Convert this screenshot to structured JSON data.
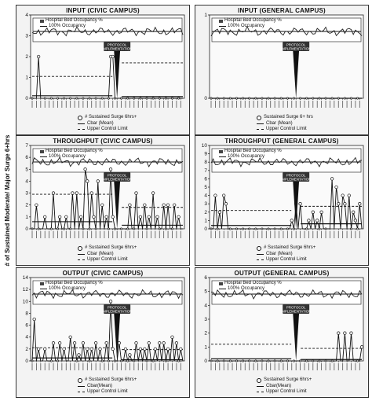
{
  "figure": {
    "y_axis_label": "# of Sustained Moderate/ Major Surge 6+hrs",
    "protocol_label_1": "PROTOCOL",
    "protocol_label_2": "IMPLEMENTATION"
  },
  "chart_data": [
    {
      "type": "line",
      "title": "INPUT (CIVIC CAMPUS)",
      "ylim": [
        0,
        4
      ],
      "yticks": [
        0,
        1,
        2,
        3,
        4
      ],
      "legend_occ": [
        "Hospital Bed Occupancy %",
        "100% Occupancy"
      ],
      "legend_series": [
        "# Sustained Surge 6hrs+",
        "Cbar (Mean)",
        "Upper Control Limit"
      ],
      "cbar_pre": 0.12,
      "ucl_pre": 1.05,
      "cbar_post": 0.08,
      "ucl_post": 1.7,
      "spikes": [
        [
          3,
          2
        ],
        [
          37,
          2
        ],
        [
          38,
          2
        ]
      ],
      "occ_ucl": 3.2,
      "occ_mean": 3.5
    },
    {
      "type": "line",
      "title": "INPUT (GENERAL CAMPUS)",
      "ylim": [
        0,
        1
      ],
      "yticks": [
        0,
        1
      ],
      "legend_occ": [
        "Hospital Bed Occupancy %",
        "100% Occupancy"
      ],
      "legend_series": [
        "Sustained Surge 6+ hrs",
        "Cbar (Mean)",
        "Upper Control Limit"
      ],
      "cbar_pre": 0.0,
      "ucl_pre": 0.0,
      "cbar_post": 0.0,
      "ucl_post": 0.0,
      "spikes": [],
      "occ_ucl": 0.82,
      "occ_mean": 0.9
    },
    {
      "type": "line",
      "title": "THROUGHPUT (CIVIC CAMPUS)",
      "ylim": [
        0,
        7
      ],
      "yticks": [
        0,
        1,
        2,
        3,
        4,
        5,
        6,
        7
      ],
      "legend_occ": [
        "Hospital Bed Occupancy %",
        "100% Occupancy"
      ],
      "legend_series": [
        "# Sustained Surge 6hrs+",
        "Cbar (Mean)",
        "Upper Control Limit"
      ],
      "cbar_pre": 0.6,
      "ucl_pre": 2.9,
      "cbar_post": 0.3,
      "ucl_post": 1.8,
      "spikes": [
        [
          2,
          2
        ],
        [
          6,
          1
        ],
        [
          10,
          3
        ],
        [
          13,
          1
        ],
        [
          16,
          1
        ],
        [
          19,
          3
        ],
        [
          21,
          3
        ],
        [
          23,
          1
        ],
        [
          25,
          5
        ],
        [
          26,
          4
        ],
        [
          28,
          3
        ],
        [
          29,
          1
        ],
        [
          31,
          4
        ],
        [
          33,
          2
        ],
        [
          35,
          1
        ],
        [
          37,
          5
        ],
        [
          38,
          1
        ],
        [
          46,
          2
        ],
        [
          49,
          3
        ],
        [
          51,
          1
        ],
        [
          53,
          2
        ],
        [
          55,
          1
        ],
        [
          57,
          3
        ],
        [
          59,
          1
        ],
        [
          62,
          2
        ],
        [
          64,
          2
        ],
        [
          67,
          2
        ],
        [
          69,
          1
        ]
      ],
      "occ_ucl": 6.3,
      "occ_mean": 6.6
    },
    {
      "type": "line",
      "title": "THROUGHPUT (GENERAL CAMPUS)",
      "ylim": [
        0,
        10
      ],
      "yticks": [
        0,
        1,
        2,
        3,
        4,
        5,
        6,
        7,
        8,
        9,
        10
      ],
      "legend_occ": [
        "Hospital Bed Occupancy %",
        "100% Occupancy"
      ],
      "legend_series": [
        "# Sustained Surge 6hrs+",
        "Cbar (Mean)",
        "Upper Control Limit"
      ],
      "cbar_pre": 0.4,
      "ucl_pre": 2.2,
      "cbar_post": 0.6,
      "ucl_post": 2.7,
      "spikes": [
        [
          2,
          4
        ],
        [
          4,
          2
        ],
        [
          6,
          4
        ],
        [
          7,
          3
        ],
        [
          38,
          1
        ],
        [
          40,
          3
        ],
        [
          42,
          3
        ],
        [
          46,
          1
        ],
        [
          48,
          2
        ],
        [
          50,
          1
        ],
        [
          52,
          2
        ],
        [
          57,
          6
        ],
        [
          59,
          5
        ],
        [
          60,
          3
        ],
        [
          62,
          4
        ],
        [
          63,
          3
        ],
        [
          65,
          4
        ],
        [
          67,
          2
        ],
        [
          68,
          1
        ],
        [
          70,
          3
        ]
      ],
      "occ_ucl": 8.3,
      "occ_mean": 8.8
    },
    {
      "type": "line",
      "title": "OUTPUT (CIVIC CAMPUS)",
      "ylim": [
        0,
        14
      ],
      "yticks": [
        0,
        2,
        4,
        6,
        8,
        10,
        12,
        14
      ],
      "legend_occ": [
        "Hospital Bed Occupancy %",
        "100% Occupancy"
      ],
      "legend_series": [
        "# Sustained Surge 6hrs+",
        "Cbar(Mean)",
        "Upper Control Limit"
      ],
      "cbar_pre": 0.5,
      "ucl_pre": 2.2,
      "cbar_post": 0.2,
      "ucl_post": 1.9,
      "spikes": [
        [
          1,
          7
        ],
        [
          3,
          2
        ],
        [
          6,
          2
        ],
        [
          10,
          3
        ],
        [
          13,
          3
        ],
        [
          15,
          2
        ],
        [
          18,
          4
        ],
        [
          20,
          3
        ],
        [
          22,
          1
        ],
        [
          24,
          3
        ],
        [
          26,
          2
        ],
        [
          28,
          2
        ],
        [
          30,
          3
        ],
        [
          32,
          2
        ],
        [
          35,
          3
        ],
        [
          37,
          10
        ],
        [
          38,
          2
        ],
        [
          41,
          3
        ],
        [
          44,
          2
        ],
        [
          46,
          1
        ],
        [
          49,
          3
        ],
        [
          51,
          2
        ],
        [
          53,
          2
        ],
        [
          55,
          3
        ],
        [
          58,
          2
        ],
        [
          60,
          3
        ],
        [
          62,
          3
        ],
        [
          64,
          2
        ],
        [
          66,
          4
        ],
        [
          68,
          3
        ],
        [
          70,
          2
        ]
      ],
      "occ_ucl": 11.8,
      "occ_mean": 12.4
    },
    {
      "type": "line",
      "title": "OUTPUT (GENERAL CAMPUS)",
      "ylim": [
        0,
        6
      ],
      "yticks": [
        0,
        1,
        2,
        3,
        4,
        5,
        6
      ],
      "legend_occ": [
        "Hospital Bed Occupancy %",
        "100% Occupancy"
      ],
      "legend_series": [
        "Sustained Surge 6hrs+",
        "Cbar(Mean)",
        "Upper Control Limit"
      ],
      "cbar_pre": 0.15,
      "ucl_pre": 1.2,
      "cbar_post": 0.1,
      "ucl_post": 0.9,
      "spikes": [
        [
          60,
          2
        ],
        [
          63,
          2
        ],
        [
          66,
          2
        ],
        [
          71,
          1
        ]
      ],
      "occ_ucl": 4.9,
      "occ_mean": 5.2
    }
  ]
}
